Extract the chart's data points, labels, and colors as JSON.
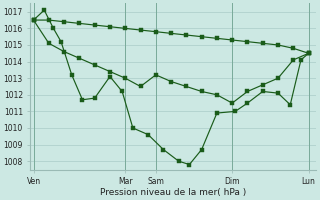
{
  "background_color": "#cce8e3",
  "grid_color": "#aaccc8",
  "line_color": "#1a5c1a",
  "title": "Pression niveau de la mer( hPa )",
  "ylim": [
    1007.5,
    1017.5
  ],
  "yticks": [
    1008,
    1009,
    1010,
    1011,
    1012,
    1013,
    1014,
    1015,
    1016,
    1017
  ],
  "xtick_labels": [
    "Ven",
    "Mar",
    "Sam",
    "Dim",
    "Lun"
  ],
  "xtick_positions": [
    0,
    6,
    8,
    13,
    18
  ],
  "xlim": [
    -0.2,
    18.5
  ],
  "series1_x": [
    0,
    1,
    2,
    3,
    4,
    5,
    6,
    7,
    8,
    9,
    10,
    11,
    12,
    13,
    14,
    15,
    16,
    17,
    18
  ],
  "series1_y": [
    1016.5,
    1016.5,
    1016.4,
    1016.3,
    1016.2,
    1016.1,
    1016.0,
    1015.9,
    1015.8,
    1015.7,
    1015.6,
    1015.5,
    1015.4,
    1015.3,
    1015.2,
    1015.1,
    1015.0,
    1014.8,
    1014.5
  ],
  "series2_x": [
    0,
    1,
    2,
    3,
    4,
    5,
    6,
    7,
    8,
    9,
    10,
    11,
    12,
    13,
    14,
    15,
    16,
    17,
    18
  ],
  "series2_y": [
    1016.5,
    1015.1,
    1014.6,
    1014.2,
    1013.8,
    1013.4,
    1013.0,
    1012.5,
    1013.2,
    1012.8,
    1012.5,
    1012.2,
    1012.0,
    1011.5,
    1012.2,
    1012.6,
    1013.0,
    1014.1,
    1014.5
  ],
  "series3_x": [
    0,
    0.7,
    1.3,
    1.8,
    2.5,
    3.2,
    4.0,
    5.0,
    5.8,
    6.5,
    7.5,
    8.5,
    9.5,
    10.2,
    11.0,
    12.0,
    13.2,
    14.0,
    15.0,
    16.0,
    16.8,
    17.5,
    18.0
  ],
  "series3_y": [
    1016.5,
    1017.1,
    1016.0,
    1015.2,
    1013.2,
    1011.7,
    1011.8,
    1013.1,
    1012.2,
    1010.0,
    1009.6,
    1008.7,
    1008.0,
    1007.8,
    1008.7,
    1010.9,
    1011.0,
    1011.5,
    1012.2,
    1012.1,
    1011.4,
    1014.1,
    1014.5
  ]
}
